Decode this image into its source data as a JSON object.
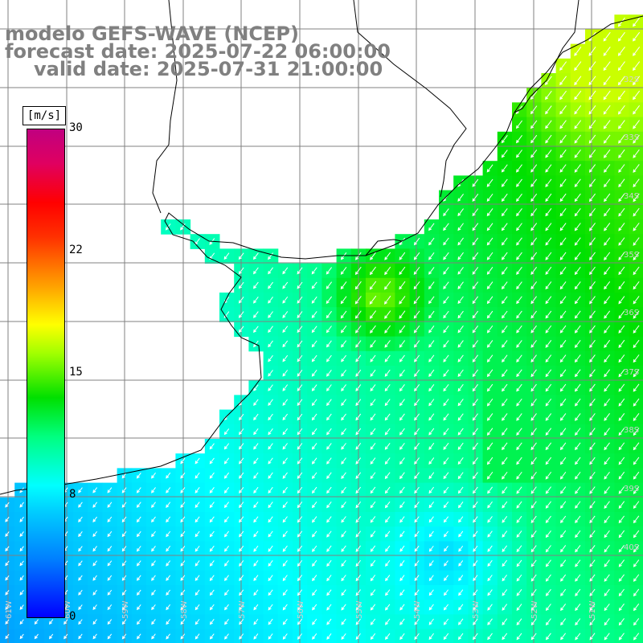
{
  "title": {
    "line1": "modelo GEFS-WAVE (NCEP)",
    "line2": "forecast date: 2025-07-22 06:00:00",
    "line3": "valid date: 2025-07-31 21:00:00"
  },
  "colorbar": {
    "unit": "[m/s]",
    "ticks": [
      "30",
      "22",
      "15",
      "8",
      "0"
    ],
    "min": 0,
    "max": 30
  },
  "lat_labels": [
    "32S",
    "33S",
    "34S",
    "35S",
    "36S",
    "37S",
    "38S",
    "39S",
    "40S"
  ],
  "lon_labels": [
    "61W",
    "60W",
    "59W",
    "58W",
    "57W",
    "56W",
    "55W",
    "54W",
    "53W",
    "52W",
    "51W"
  ],
  "colors": {
    "land": "#ffffff",
    "grid": "#808080",
    "coast": "#000000",
    "arrow": "#ffffff",
    "title": "#808080"
  },
  "wind_field": {
    "dominant_direction": "from northeast (arrows point southwest)",
    "speed_range_ms": [
      6,
      16
    ]
  }
}
